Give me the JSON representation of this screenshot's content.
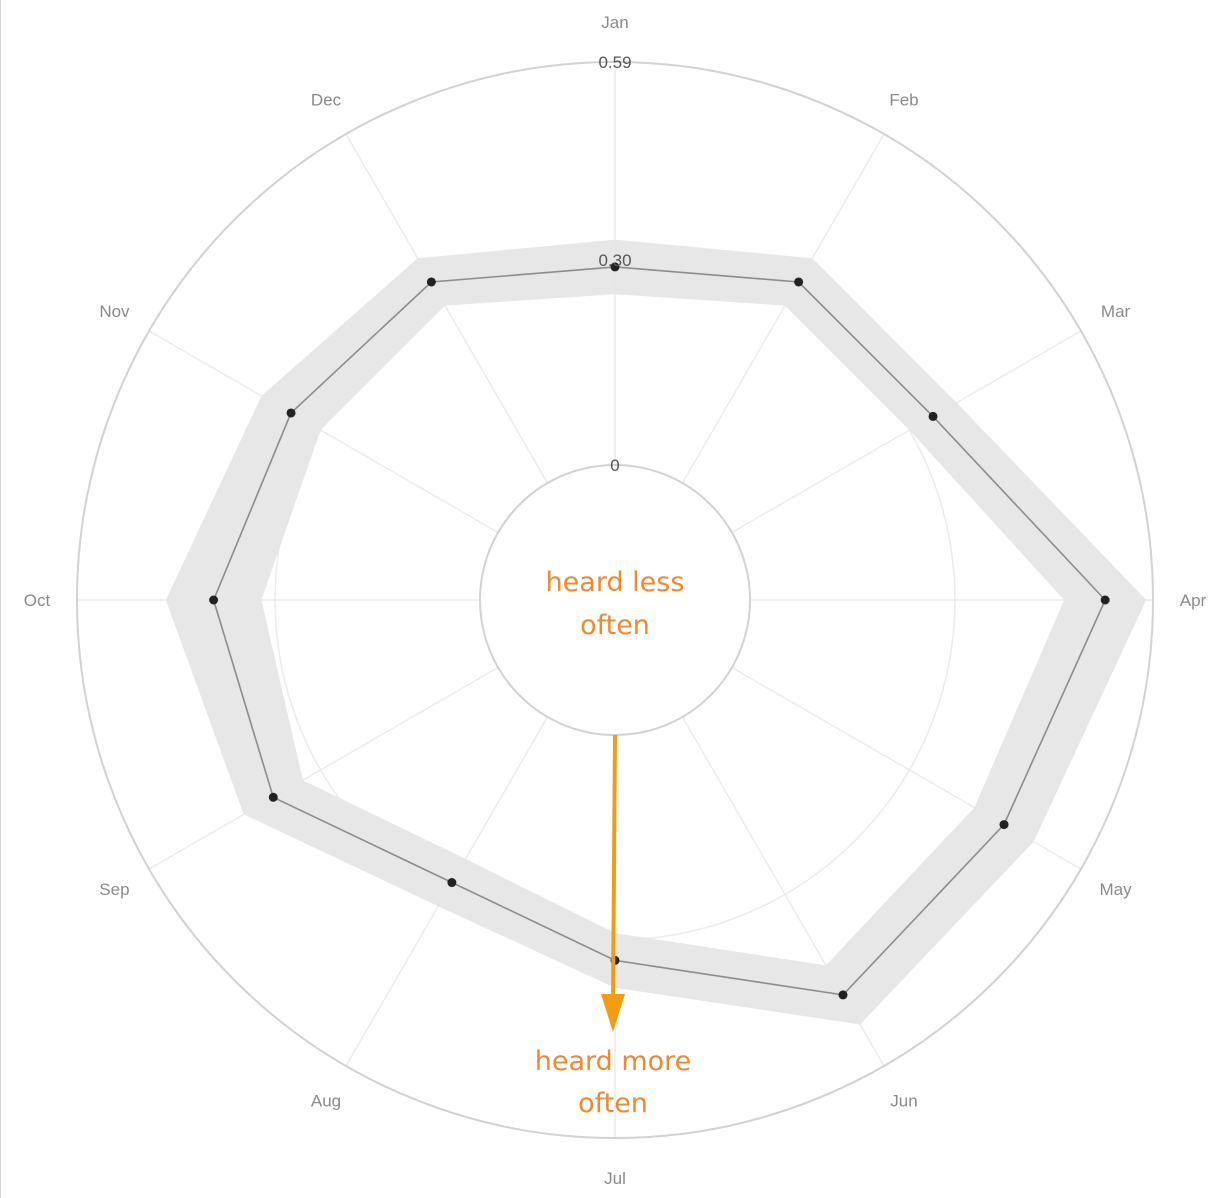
{
  "chart_data": {
    "type": "radar",
    "categories": [
      "Jan",
      "Feb",
      "Mar",
      "Apr",
      "May",
      "Jun",
      "Jul",
      "Aug",
      "Sep",
      "Oct",
      "Nov",
      "Dec"
    ],
    "values": [
      0.29,
      0.34,
      0.34,
      0.52,
      0.46,
      0.47,
      0.33,
      0.28,
      0.38,
      0.39,
      0.35,
      0.34
    ],
    "band": [
      0.04,
      0.04,
      0.04,
      0.06,
      0.05,
      0.05,
      0.04,
      0.04,
      0.05,
      0.07,
      0.05,
      0.04
    ],
    "radial_ticks": [
      "0",
      "0.30",
      "0.59"
    ],
    "rlim": [
      0,
      0.59
    ],
    "grid": true,
    "annotations": {
      "inner": "heard less often",
      "outer": "heard more often"
    },
    "colors": {
      "band": "#e6e6e6",
      "line": "#8c8c8c",
      "point": "#222222",
      "grid": "#ececec",
      "ring": "#d2d2d2",
      "arrow": "#f39c12",
      "annotation": "#ee8a2d"
    }
  }
}
